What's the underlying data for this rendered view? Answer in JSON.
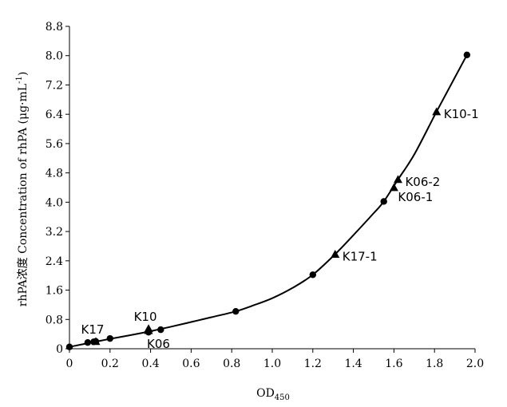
{
  "chart_data": {
    "type": "scatter",
    "xlabel": "OD",
    "xlabel_sub": "450",
    "ylabel": "rhPA浓度 Concentration of rhPA (μg·mL",
    "ylabel_sup": "-1",
    "ylabel_close": ")",
    "xlim": [
      0,
      2.0
    ],
    "ylim": [
      0,
      8.8
    ],
    "x_ticks": [
      "0",
      "0.2",
      "0.4",
      "0.6",
      "0.8",
      "1.0",
      "1.2",
      "1.4",
      "1.6",
      "1.8",
      "2.0"
    ],
    "x_tick_values": [
      0,
      0.2,
      0.4,
      0.6,
      0.8,
      1.0,
      1.2,
      1.4,
      1.6,
      1.8,
      2.0
    ],
    "y_ticks": [
      "0",
      "0.8",
      "1.6",
      "2.4",
      "3.2",
      "4.0",
      "4.8",
      "5.6",
      "6.4",
      "7.2",
      "8.0",
      "8.8"
    ],
    "y_tick_values": [
      0,
      0.8,
      1.6,
      2.4,
      3.2,
      4.0,
      4.8,
      5.6,
      6.4,
      7.2,
      8.0,
      8.8
    ],
    "grid": false,
    "series": [
      {
        "marker": "circle",
        "points": [
          {
            "x": 0.0,
            "y": 0.05
          },
          {
            "x": 0.09,
            "y": 0.17
          },
          {
            "x": 0.12,
            "y": 0.19
          },
          {
            "x": 0.13,
            "y": 0.2
          },
          {
            "x": 0.2,
            "y": 0.28
          },
          {
            "x": 0.39,
            "y": 0.45
          },
          {
            "x": 0.45,
            "y": 0.52
          },
          {
            "x": 0.82,
            "y": 1.02
          },
          {
            "x": 1.2,
            "y": 2.02
          },
          {
            "x": 1.55,
            "y": 4.02
          },
          {
            "x": 1.96,
            "y": 8.02
          }
        ]
      },
      {
        "marker": "triangle",
        "points": [
          {
            "x": 0.13,
            "y": 0.2
          },
          {
            "x": 0.39,
            "y": 0.55
          },
          {
            "x": 0.39,
            "y": 0.5
          },
          {
            "x": 1.31,
            "y": 2.58
          },
          {
            "x": 1.6,
            "y": 4.4
          },
          {
            "x": 1.62,
            "y": 4.62
          },
          {
            "x": 1.81,
            "y": 6.47
          }
        ]
      }
    ],
    "curve": [
      {
        "x": 0.0,
        "y": 0.05
      },
      {
        "x": 0.1,
        "y": 0.16
      },
      {
        "x": 0.2,
        "y": 0.27
      },
      {
        "x": 0.3,
        "y": 0.37
      },
      {
        "x": 0.4,
        "y": 0.48
      },
      {
        "x": 0.5,
        "y": 0.6
      },
      {
        "x": 0.6,
        "y": 0.73
      },
      {
        "x": 0.7,
        "y": 0.86
      },
      {
        "x": 0.82,
        "y": 1.02
      },
      {
        "x": 0.9,
        "y": 1.17
      },
      {
        "x": 1.0,
        "y": 1.38
      },
      {
        "x": 1.1,
        "y": 1.66
      },
      {
        "x": 1.2,
        "y": 2.02
      },
      {
        "x": 1.31,
        "y": 2.58
      },
      {
        "x": 1.4,
        "y": 3.1
      },
      {
        "x": 1.5,
        "y": 3.7
      },
      {
        "x": 1.55,
        "y": 4.02
      },
      {
        "x": 1.62,
        "y": 4.62
      },
      {
        "x": 1.7,
        "y": 5.3
      },
      {
        "x": 1.81,
        "y": 6.47
      },
      {
        "x": 1.9,
        "y": 7.4
      },
      {
        "x": 1.96,
        "y": 8.02
      }
    ],
    "annotations": [
      {
        "text": "K17",
        "x": 0.13,
        "y": 0.2,
        "anchor": "above"
      },
      {
        "text": "K10",
        "x": 0.39,
        "y": 0.55,
        "anchor": "above"
      },
      {
        "text": "K06",
        "x": 0.39,
        "y": 0.5,
        "anchor": "below"
      },
      {
        "text": "K17-1",
        "x": 1.31,
        "y": 2.58,
        "anchor": "right"
      },
      {
        "text": "K06-1",
        "x": 1.6,
        "y": 4.4,
        "anchor": "right-below"
      },
      {
        "text": "K06-2",
        "x": 1.62,
        "y": 4.62,
        "anchor": "right"
      },
      {
        "text": "K10-1",
        "x": 1.81,
        "y": 6.47,
        "anchor": "right"
      }
    ]
  }
}
